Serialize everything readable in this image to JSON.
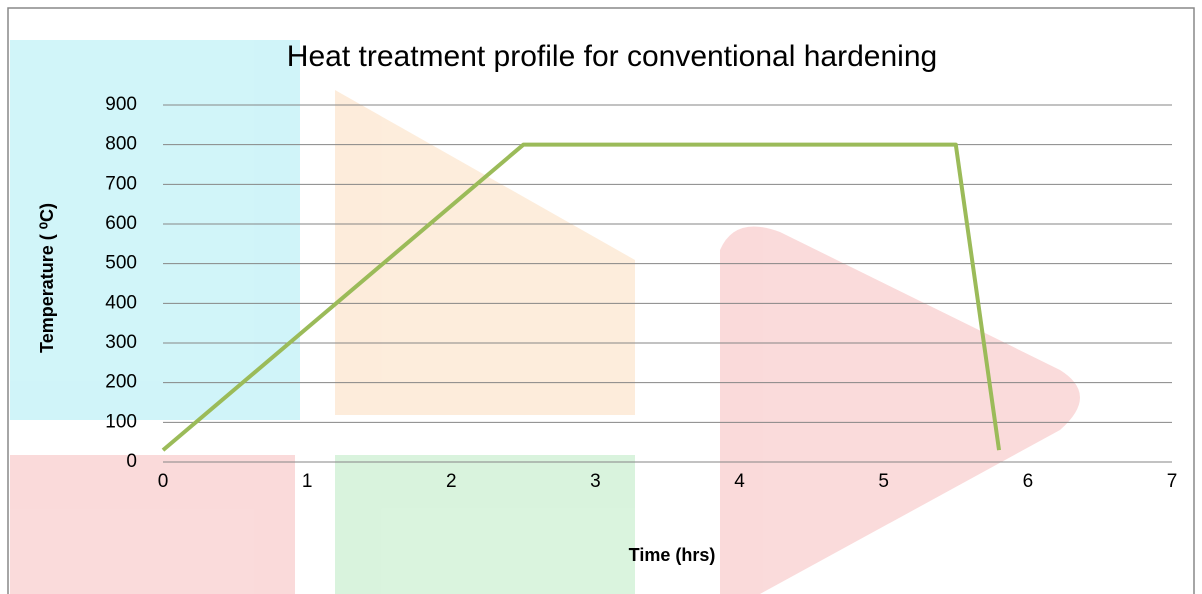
{
  "chart_data": {
    "type": "line",
    "title": "Heat treatment profile for conventional hardening",
    "x_label": "Time (hrs)",
    "y_label": "Temperature ( ⁰C)",
    "x": [
      0,
      2.5,
      5.5,
      5.8
    ],
    "values": [
      30,
      800,
      800,
      30
    ],
    "color": "#9bbb59",
    "xlim": [
      0,
      7
    ],
    "xticks": [
      0,
      1,
      2,
      3,
      4,
      5,
      6,
      7
    ],
    "ylim": [
      0,
      900
    ],
    "yticks": [
      0,
      100,
      200,
      300,
      400,
      500,
      600,
      700,
      800,
      900
    ],
    "grid": true
  }
}
